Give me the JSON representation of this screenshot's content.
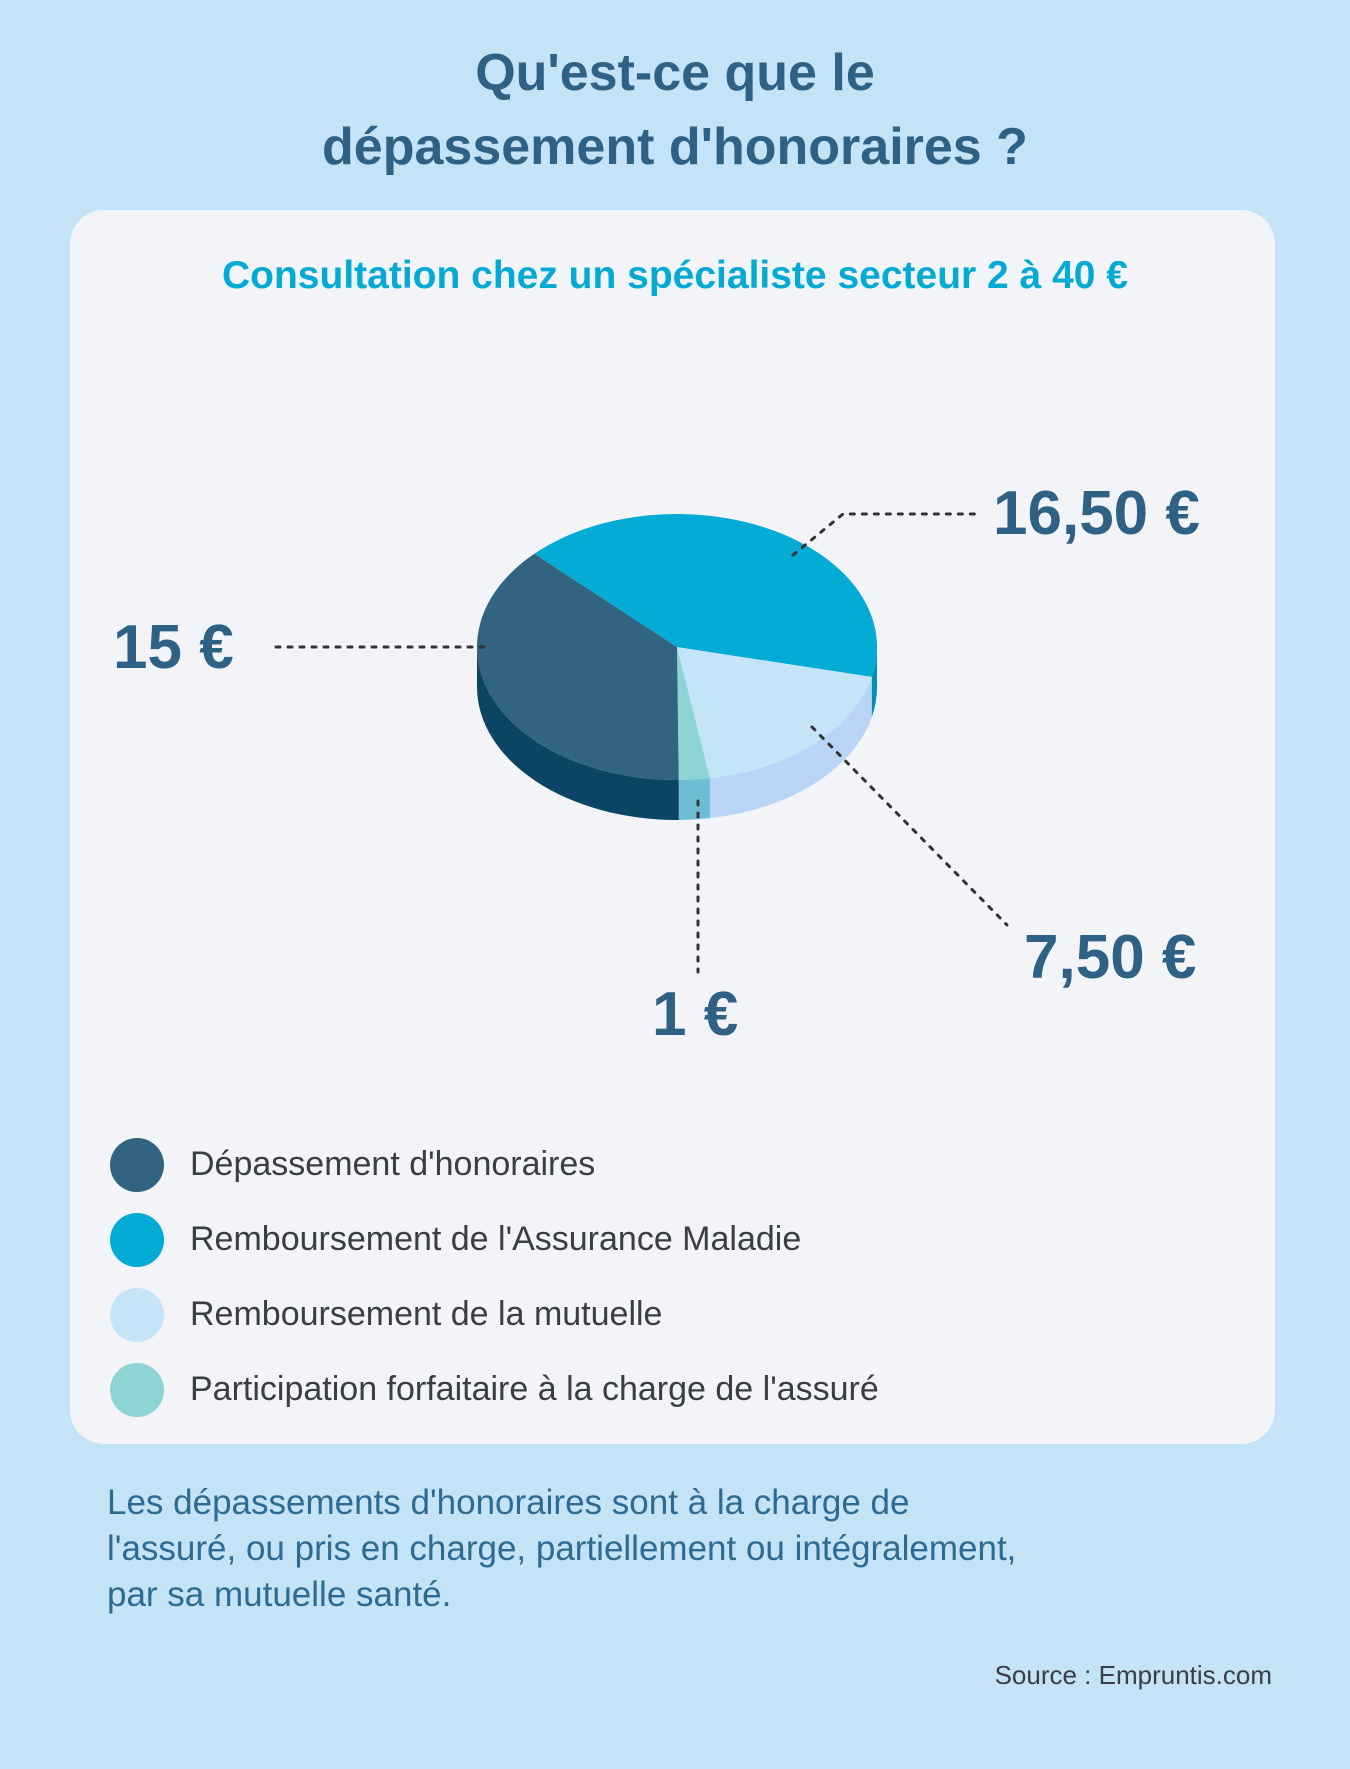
{
  "title_lines": [
    "Qu'est-ce que le",
    "dépassement d'honoraires ?"
  ],
  "chart_data": {
    "type": "pie",
    "style": "3d",
    "title": "Consultation chez un spécialiste secteur 2 à 40 €",
    "total": 40,
    "slices": [
      {
        "name": "Remboursement de la mutuelle",
        "value": 7.5,
        "label": "7,50 €",
        "color": "#c4e4f7",
        "side_color": "#b8d5f5"
      },
      {
        "name": "Participation forfaitaire à la charge de l'assuré",
        "value": 1,
        "label": "1 €",
        "color": "#8fd4d4",
        "side_color": "#6dbdd4"
      },
      {
        "name": "Dépassement d'honoraires",
        "value": 15,
        "label": "15 €",
        "color": "#326381",
        "side_color": "#0c4464"
      },
      {
        "name": "Remboursement de l'Assurance Maladie",
        "value": 16.5,
        "label": "16,50 €",
        "color": "#04abd4",
        "side_color": "#0390b4"
      }
    ],
    "legend_placement": "bottom-left"
  },
  "footer_lines": [
    "Les dépassements d'honoraires sont à la charge de",
    "l'assuré, ou pris en charge, partiellement ou intégralement,",
    "par sa mutuelle santé."
  ],
  "source": "Source : Empruntis.com"
}
